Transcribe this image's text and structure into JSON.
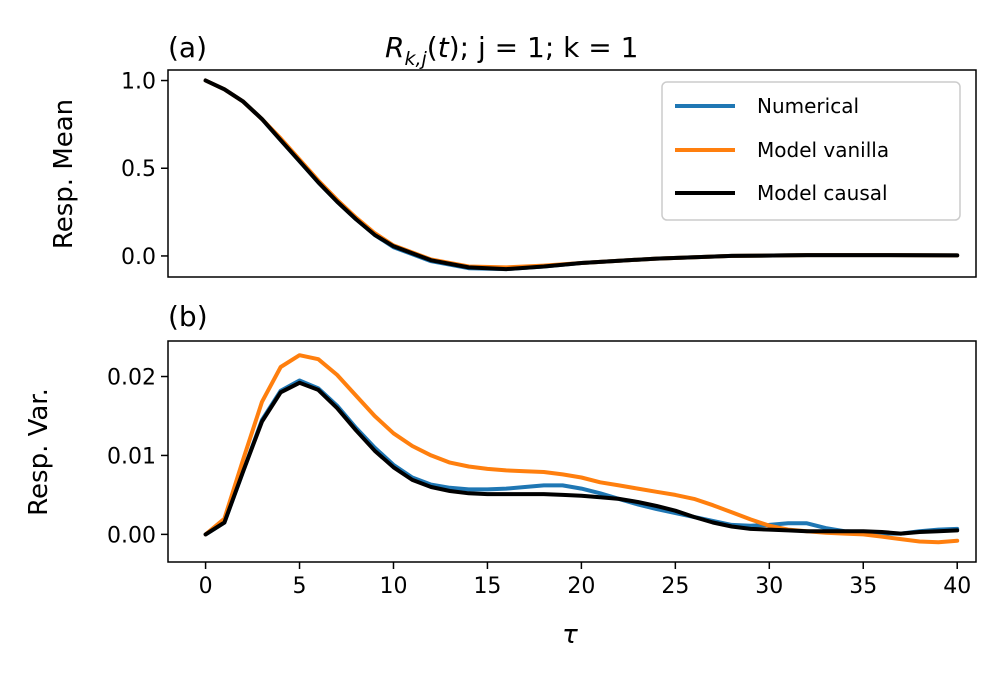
{
  "chart_data": [
    {
      "type": "line",
      "panel_label": "(a)",
      "title": "; j = 1; k = 1",
      "title_math": "R_{k,j}(t)",
      "ylabel": "Resp. Mean",
      "xlim": [
        -2,
        41
      ],
      "ylim": [
        -0.12,
        1.06
      ],
      "yticks": [
        1.0,
        0.5,
        0.0
      ],
      "ytick_labels": [
        "1.0",
        "0.5",
        "0.0"
      ],
      "legend": "top-right",
      "x": [
        0,
        1,
        2,
        3,
        4,
        5,
        6,
        7,
        8,
        9,
        10,
        12,
        14,
        16,
        18,
        20,
        24,
        28,
        32,
        36,
        40
      ],
      "series": [
        {
          "name": "Numerical",
          "color": "#1f77b4",
          "values": [
            1.0,
            0.95,
            0.88,
            0.78,
            0.66,
            0.54,
            0.42,
            0.31,
            0.21,
            0.12,
            0.05,
            -0.03,
            -0.07,
            -0.075,
            -0.06,
            -0.04,
            -0.015,
            0.0,
            0.005,
            0.005,
            0.003
          ]
        },
        {
          "name": "Model vanilla",
          "color": "#ff7f0e",
          "values": [
            1.0,
            0.95,
            0.88,
            0.78,
            0.67,
            0.55,
            0.43,
            0.32,
            0.22,
            0.13,
            0.06,
            -0.02,
            -0.06,
            -0.065,
            -0.055,
            -0.04,
            -0.015,
            0.0,
            0.005,
            0.005,
            0.003
          ]
        },
        {
          "name": "Model causal",
          "color": "#000000",
          "values": [
            1.0,
            0.95,
            0.88,
            0.78,
            0.66,
            0.54,
            0.42,
            0.31,
            0.21,
            0.12,
            0.055,
            -0.025,
            -0.065,
            -0.075,
            -0.06,
            -0.04,
            -0.015,
            0.0,
            0.005,
            0.005,
            0.003
          ]
        }
      ]
    },
    {
      "type": "line",
      "panel_label": "(b)",
      "ylabel": "Resp. Var.",
      "xlabel": "τ",
      "xlim": [
        -2,
        41
      ],
      "ylim": [
        -0.0035,
        0.0245
      ],
      "xticks": [
        0,
        5,
        10,
        15,
        20,
        25,
        30,
        35,
        40
      ],
      "xtick_labels": [
        "0",
        "5",
        "10",
        "15",
        "20",
        "25",
        "30",
        "35",
        "40"
      ],
      "yticks": [
        0.02,
        0.01,
        0.0
      ],
      "ytick_labels": [
        "0.02",
        "0.01",
        "0.00"
      ],
      "x": [
        0,
        1,
        2,
        3,
        4,
        5,
        6,
        7,
        8,
        9,
        10,
        11,
        12,
        13,
        14,
        15,
        16,
        17,
        18,
        19,
        20,
        21,
        22,
        23,
        24,
        25,
        26,
        27,
        28,
        29,
        30,
        31,
        32,
        33,
        34,
        35,
        36,
        37,
        38,
        39,
        40
      ],
      "series": [
        {
          "name": "Numerical",
          "color": "#1f77b4",
          "values": [
            0.0,
            0.0015,
            0.008,
            0.0145,
            0.0182,
            0.0195,
            0.0185,
            0.0163,
            0.0135,
            0.011,
            0.0088,
            0.0072,
            0.0063,
            0.0059,
            0.0057,
            0.0057,
            0.0058,
            0.006,
            0.0062,
            0.0062,
            0.0058,
            0.0052,
            0.0045,
            0.0038,
            0.0032,
            0.0027,
            0.0022,
            0.0017,
            0.0012,
            0.0011,
            0.0012,
            0.0014,
            0.0014,
            0.0008,
            0.0004,
            0.0003,
            0.0001,
            0.0001,
            0.0004,
            0.0006,
            0.0007
          ]
        },
        {
          "name": "Model vanilla",
          "color": "#ff7f0e",
          "values": [
            0.0,
            0.002,
            0.0095,
            0.0168,
            0.0212,
            0.0227,
            0.0222,
            0.0202,
            0.0176,
            0.015,
            0.0128,
            0.0112,
            0.01,
            0.0091,
            0.0086,
            0.0083,
            0.0081,
            0.008,
            0.0079,
            0.0076,
            0.0072,
            0.0066,
            0.0062,
            0.0058,
            0.0054,
            0.005,
            0.0045,
            0.0037,
            0.0028,
            0.0019,
            0.0011,
            0.0006,
            0.0004,
            0.0002,
            0.0001,
            0.0,
            -0.0003,
            -0.0006,
            -0.0009,
            -0.001,
            -0.0008
          ]
        },
        {
          "name": "Model causal",
          "color": "#000000",
          "values": [
            0.0,
            0.0015,
            0.008,
            0.0143,
            0.018,
            0.0192,
            0.0183,
            0.016,
            0.0132,
            0.0106,
            0.0085,
            0.0069,
            0.006,
            0.0055,
            0.0052,
            0.0051,
            0.0051,
            0.0051,
            0.0051,
            0.005,
            0.0049,
            0.0047,
            0.0045,
            0.0041,
            0.0036,
            0.003,
            0.0022,
            0.0015,
            0.001,
            0.0007,
            0.0006,
            0.0005,
            0.0004,
            0.0004,
            0.0004,
            0.0004,
            0.0003,
            0.0001,
            0.0003,
            0.0004,
            0.0005
          ]
        }
      ]
    }
  ]
}
